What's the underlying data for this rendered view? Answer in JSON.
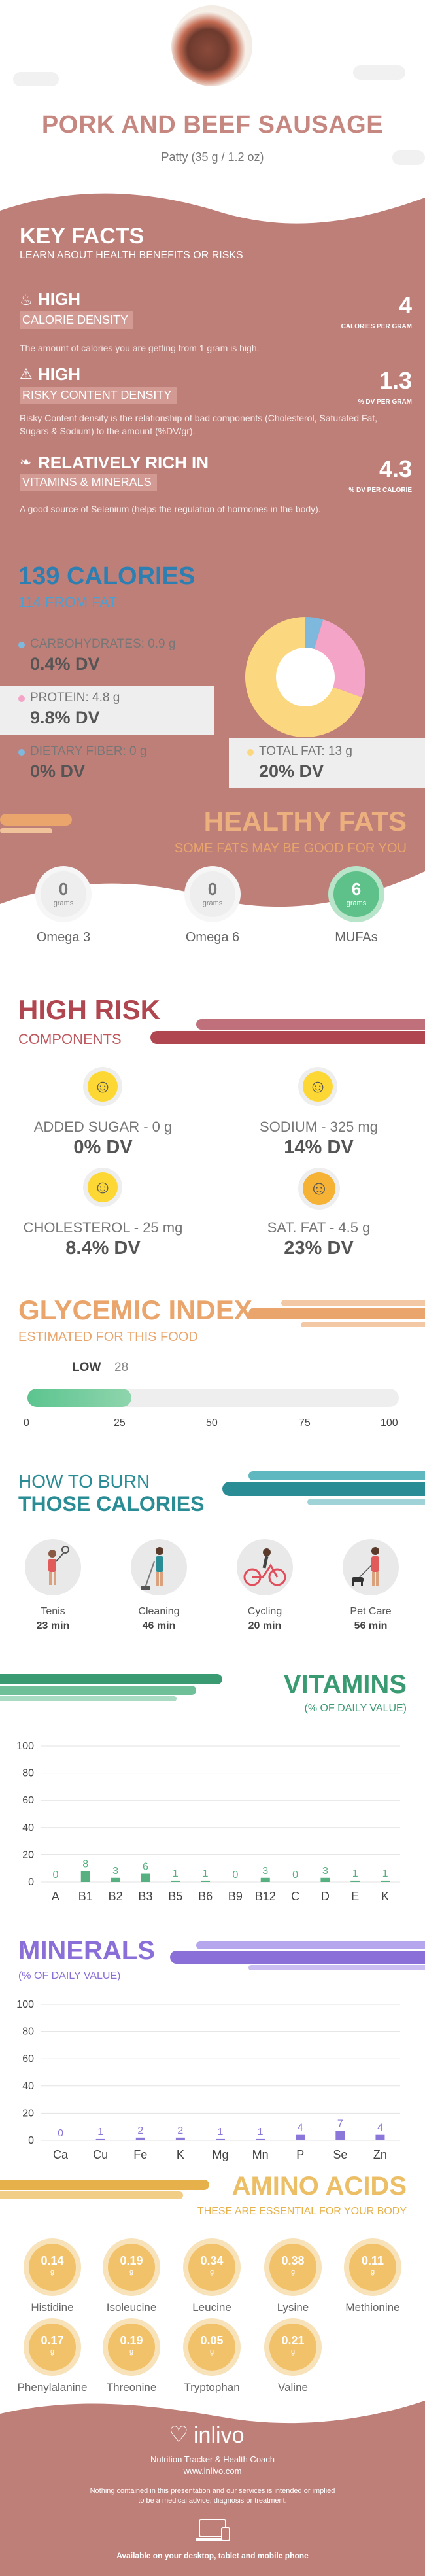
{
  "header": {
    "title": "PORK AND BEEF SAUSAGE",
    "serving": "Patty (35 g / 1.2 oz)"
  },
  "key_facts": {
    "title": "KEY FACTS",
    "subtitle": "LEARN ABOUT HEALTH BENEFITS OR RISKS",
    "items": [
      {
        "level": "HIGH",
        "label": "CALORIE DENSITY",
        "value": "4",
        "unit": "CALORIES PER GRAM",
        "desc": "The amount of calories you are getting from 1 gram is high."
      },
      {
        "level": "HIGH",
        "label": "RISKY CONTENT DENSITY",
        "value": "1.3",
        "unit": "% DV PER GRAM",
        "desc": "Risky Content density is the relationship of bad components (Cholesterol, Saturated Fat, Sugars & Sodium) to the amount (%DV/gr)."
      },
      {
        "level": "RELATIVELY RICH IN",
        "label": "VITAMINS & MINERALS",
        "value": "4.3",
        "unit": "% DV PER CALORIE",
        "desc": "A good source of Selenium (helps the regulation of hormones in the body)."
      }
    ]
  },
  "calories": {
    "title": "139 CALORIES",
    "from_fat": "114 FROM FAT",
    "carbs_label": "CARBOHYDRATES: 0.9 g",
    "carbs_dv": "0.4% DV",
    "protein_label": "PROTEIN: 4.8 g",
    "protein_dv": "9.8% DV",
    "fiber_label": "DIETARY FIBER: 0 g",
    "fiber_dv": "0% DV",
    "fat_label": "TOTAL FAT: 13 g",
    "fat_dv": "20% DV",
    "donut": [
      {
        "name": "carbohydrates",
        "value": 0.9,
        "color": "#7fb8dd"
      },
      {
        "name": "protein",
        "value": 4.8,
        "color": "#f3a4c7"
      },
      {
        "name": "fat",
        "value": 13,
        "color": "#fbd77f"
      }
    ]
  },
  "healthy_fats": {
    "title": "HEALTHY FATS",
    "subtitle": "SOME FATS MAY BE GOOD FOR YOU",
    "items": [
      {
        "value": "0",
        "unit": "grams",
        "name": "Omega 3"
      },
      {
        "value": "0",
        "unit": "grams",
        "name": "Omega 6"
      },
      {
        "value": "6",
        "unit": "grams",
        "name": "MUFAs"
      }
    ]
  },
  "high_risk": {
    "title": "HIGH RISK",
    "subtitle": "COMPONENTS",
    "items": [
      {
        "label": "ADDED SUGAR - 0 g",
        "dv": "0% DV"
      },
      {
        "label": "SODIUM - 325 mg",
        "dv": "14% DV"
      },
      {
        "label": "CHOLESTEROL - 25 mg",
        "dv": "8.4% DV"
      },
      {
        "label": "SAT. FAT - 4.5 g",
        "dv": "23% DV"
      }
    ]
  },
  "glycemic": {
    "title": "GLYCEMIC INDEX",
    "subtitle": "ESTIMATED FOR THIS FOOD",
    "level": "LOW",
    "value": "28",
    "value_num": 28,
    "ticks": [
      "0",
      "25",
      "50",
      "75",
      "100"
    ]
  },
  "burn": {
    "title1": "HOW TO BURN",
    "title2": "THOSE CALORIES",
    "items": [
      {
        "name": "Tenis",
        "time": "23 min",
        "icon": "tennis-player-icon"
      },
      {
        "name": "Cleaning",
        "time": "46 min",
        "icon": "cleaning-person-icon"
      },
      {
        "name": "Cycling",
        "time": "20 min",
        "icon": "cyclist-icon"
      },
      {
        "name": "Pet Care",
        "time": "56 min",
        "icon": "dog-walker-icon"
      }
    ]
  },
  "vitamins": {
    "title": "VITAMINS",
    "subtitle": "(% OF DAILY VALUE)",
    "chart_data": {
      "type": "bar",
      "categories": [
        "A",
        "B1",
        "B2",
        "B3",
        "B5",
        "B6",
        "B9",
        "B12",
        "C",
        "D",
        "E",
        "K"
      ],
      "values": [
        0,
        8,
        3,
        6,
        1,
        1,
        0,
        3,
        0,
        3,
        1,
        1
      ],
      "yticks": [
        "100",
        "80",
        "60",
        "40",
        "20",
        "0"
      ],
      "ylim": [
        0,
        100
      ],
      "color": "#56b07f"
    }
  },
  "minerals": {
    "title": "MINERALS",
    "subtitle": "(% OF DAILY VALUE)",
    "chart_data": {
      "type": "bar",
      "categories": [
        "Ca",
        "Cu",
        "Fe",
        "K",
        "Mg",
        "Mn",
        "P",
        "Se",
        "Zn"
      ],
      "values": [
        0,
        1,
        2,
        2,
        1,
        1,
        4,
        7,
        4
      ],
      "yticks": [
        "100",
        "80",
        "60",
        "40",
        "20",
        "0"
      ],
      "ylim": [
        0,
        100
      ],
      "color": "#8b77d9"
    }
  },
  "amino": {
    "title": "AMINO ACIDS",
    "subtitle": "THESE ARE ESSENTIAL FOR YOUR BODY",
    "unit": "g",
    "items": [
      {
        "value": "0.14",
        "name": "Histidine"
      },
      {
        "value": "0.19",
        "name": "Isoleucine"
      },
      {
        "value": "0.34",
        "name": "Leucine"
      },
      {
        "value": "0.38",
        "name": "Lysine"
      },
      {
        "value": "0.11",
        "name": "Methionine"
      },
      {
        "value": "0.17",
        "name": "Phenylalanine"
      },
      {
        "value": "0.19",
        "name": "Threonine"
      },
      {
        "value": "0.05",
        "name": "Tryptophan"
      },
      {
        "value": "0.21",
        "name": "Valine"
      }
    ]
  },
  "footer": {
    "brand": "inlivo",
    "tagline": "Nutrition Tracker & Health Coach",
    "url": "www.inlivo.com",
    "disclaimer1": "Nothing contained in this presentation and our services is intended or implied",
    "disclaimer2": "to be a medical advice, diagnosis or treatment.",
    "available": "Available on your desktop, tablet and mobile phone"
  },
  "colors": {
    "rose": "#bf7f79",
    "blue": "#2e7fb1",
    "orange": "#e9a56b",
    "red": "#b0464f",
    "teal": "#2a8c94",
    "green": "#3a9a72",
    "purple": "#8b6fd8",
    "gold": "#e6b04a"
  }
}
